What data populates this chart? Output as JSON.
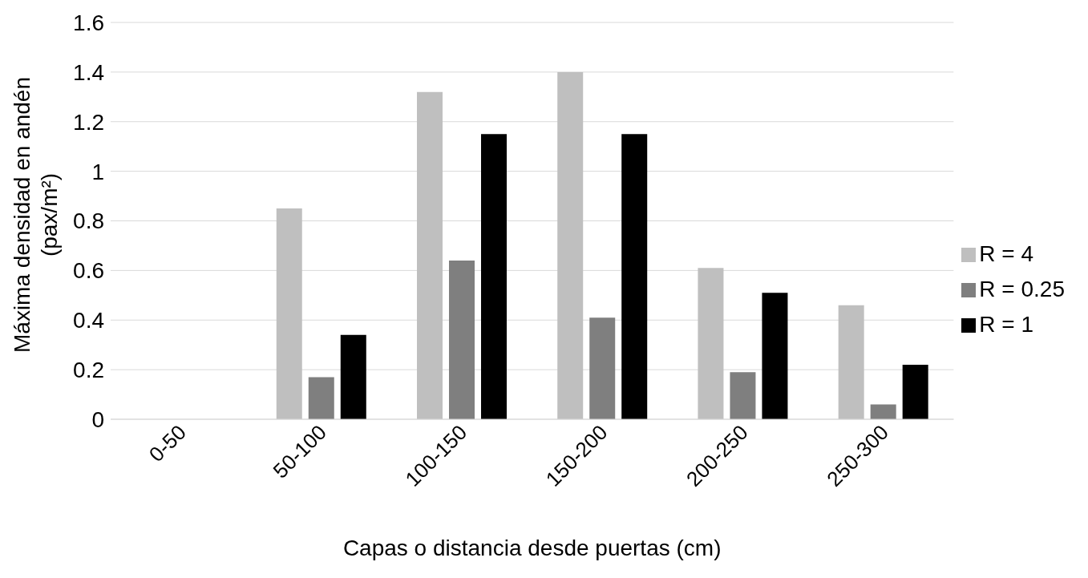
{
  "chart_data": {
    "type": "bar",
    "xlabel": "Capas o distancia desde puertas (cm)",
    "ylabel": "Máxima densidad en andén\n(pax/m²)",
    "categories": [
      "0-50",
      "50-100",
      "100-150",
      "150-200",
      "200-250",
      "250-300"
    ],
    "series": [
      {
        "name": "R = 4",
        "color": "#bfbfbf",
        "values": [
          0,
          0.85,
          1.32,
          1.4,
          0.61,
          0.46
        ]
      },
      {
        "name": "R = 0.25",
        "color": "#7f7f7f",
        "values": [
          0,
          0.17,
          0.64,
          0.41,
          0.19,
          0.06
        ]
      },
      {
        "name": "R = 1",
        "color": "#000000",
        "values": [
          0,
          0.34,
          1.15,
          1.15,
          0.51,
          0.22
        ]
      }
    ],
    "ylim": [
      0,
      1.6
    ],
    "yticks": [
      0,
      0.2,
      0.4,
      0.6,
      0.8,
      1,
      1.2,
      1.4,
      1.6
    ],
    "grid": "y",
    "legend": "right"
  }
}
